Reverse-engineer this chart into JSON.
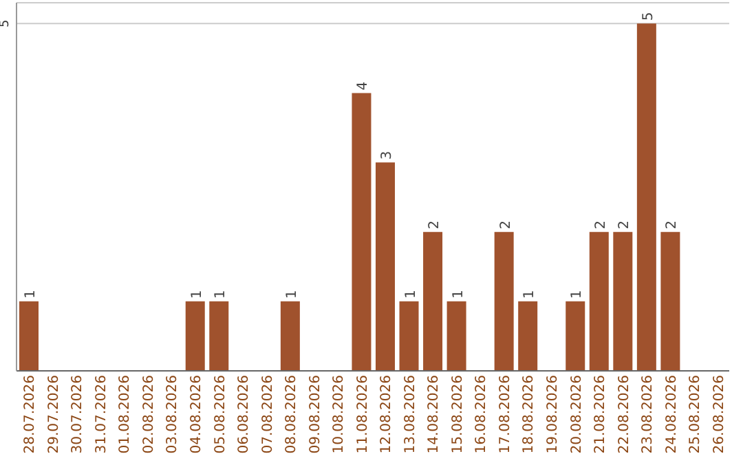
{
  "chart_data": {
    "type": "bar",
    "categories": [
      "28.07.2026",
      "29.07.2026",
      "30.07.2026",
      "31.07.2026",
      "01.08.2026",
      "02.08.2026",
      "03.08.2026",
      "04.08.2026",
      "05.08.2026",
      "06.08.2026",
      "07.08.2026",
      "08.08.2026",
      "09.08.2026",
      "10.08.2026",
      "11.08.2026",
      "12.08.2026",
      "13.08.2026",
      "14.08.2026",
      "15.08.2026",
      "16.08.2026",
      "17.08.2026",
      "18.08.2026",
      "19.08.2026",
      "20.08.2026",
      "21.08.2026",
      "22.08.2026",
      "23.08.2026",
      "24.08.2026",
      "25.08.2026",
      "26.08.2026"
    ],
    "values": [
      1,
      0,
      0,
      0,
      0,
      0,
      0,
      1,
      1,
      0,
      0,
      1,
      0,
      0,
      4,
      3,
      1,
      2,
      1,
      0,
      2,
      1,
      0,
      1,
      2,
      2,
      5,
      2,
      0,
      0
    ],
    "value_labels": [
      "1",
      null,
      null,
      null,
      null,
      null,
      null,
      "1",
      "1",
      null,
      null,
      "1",
      null,
      null,
      "4",
      "3",
      "1",
      "2",
      "1",
      null,
      "2",
      "1",
      null,
      "1",
      "2",
      "2",
      "5",
      "2",
      null,
      null
    ],
    "color": "#a0522d",
    "ylim": [
      0,
      5.3
    ],
    "yticks": [
      5
    ],
    "grid": "y"
  }
}
